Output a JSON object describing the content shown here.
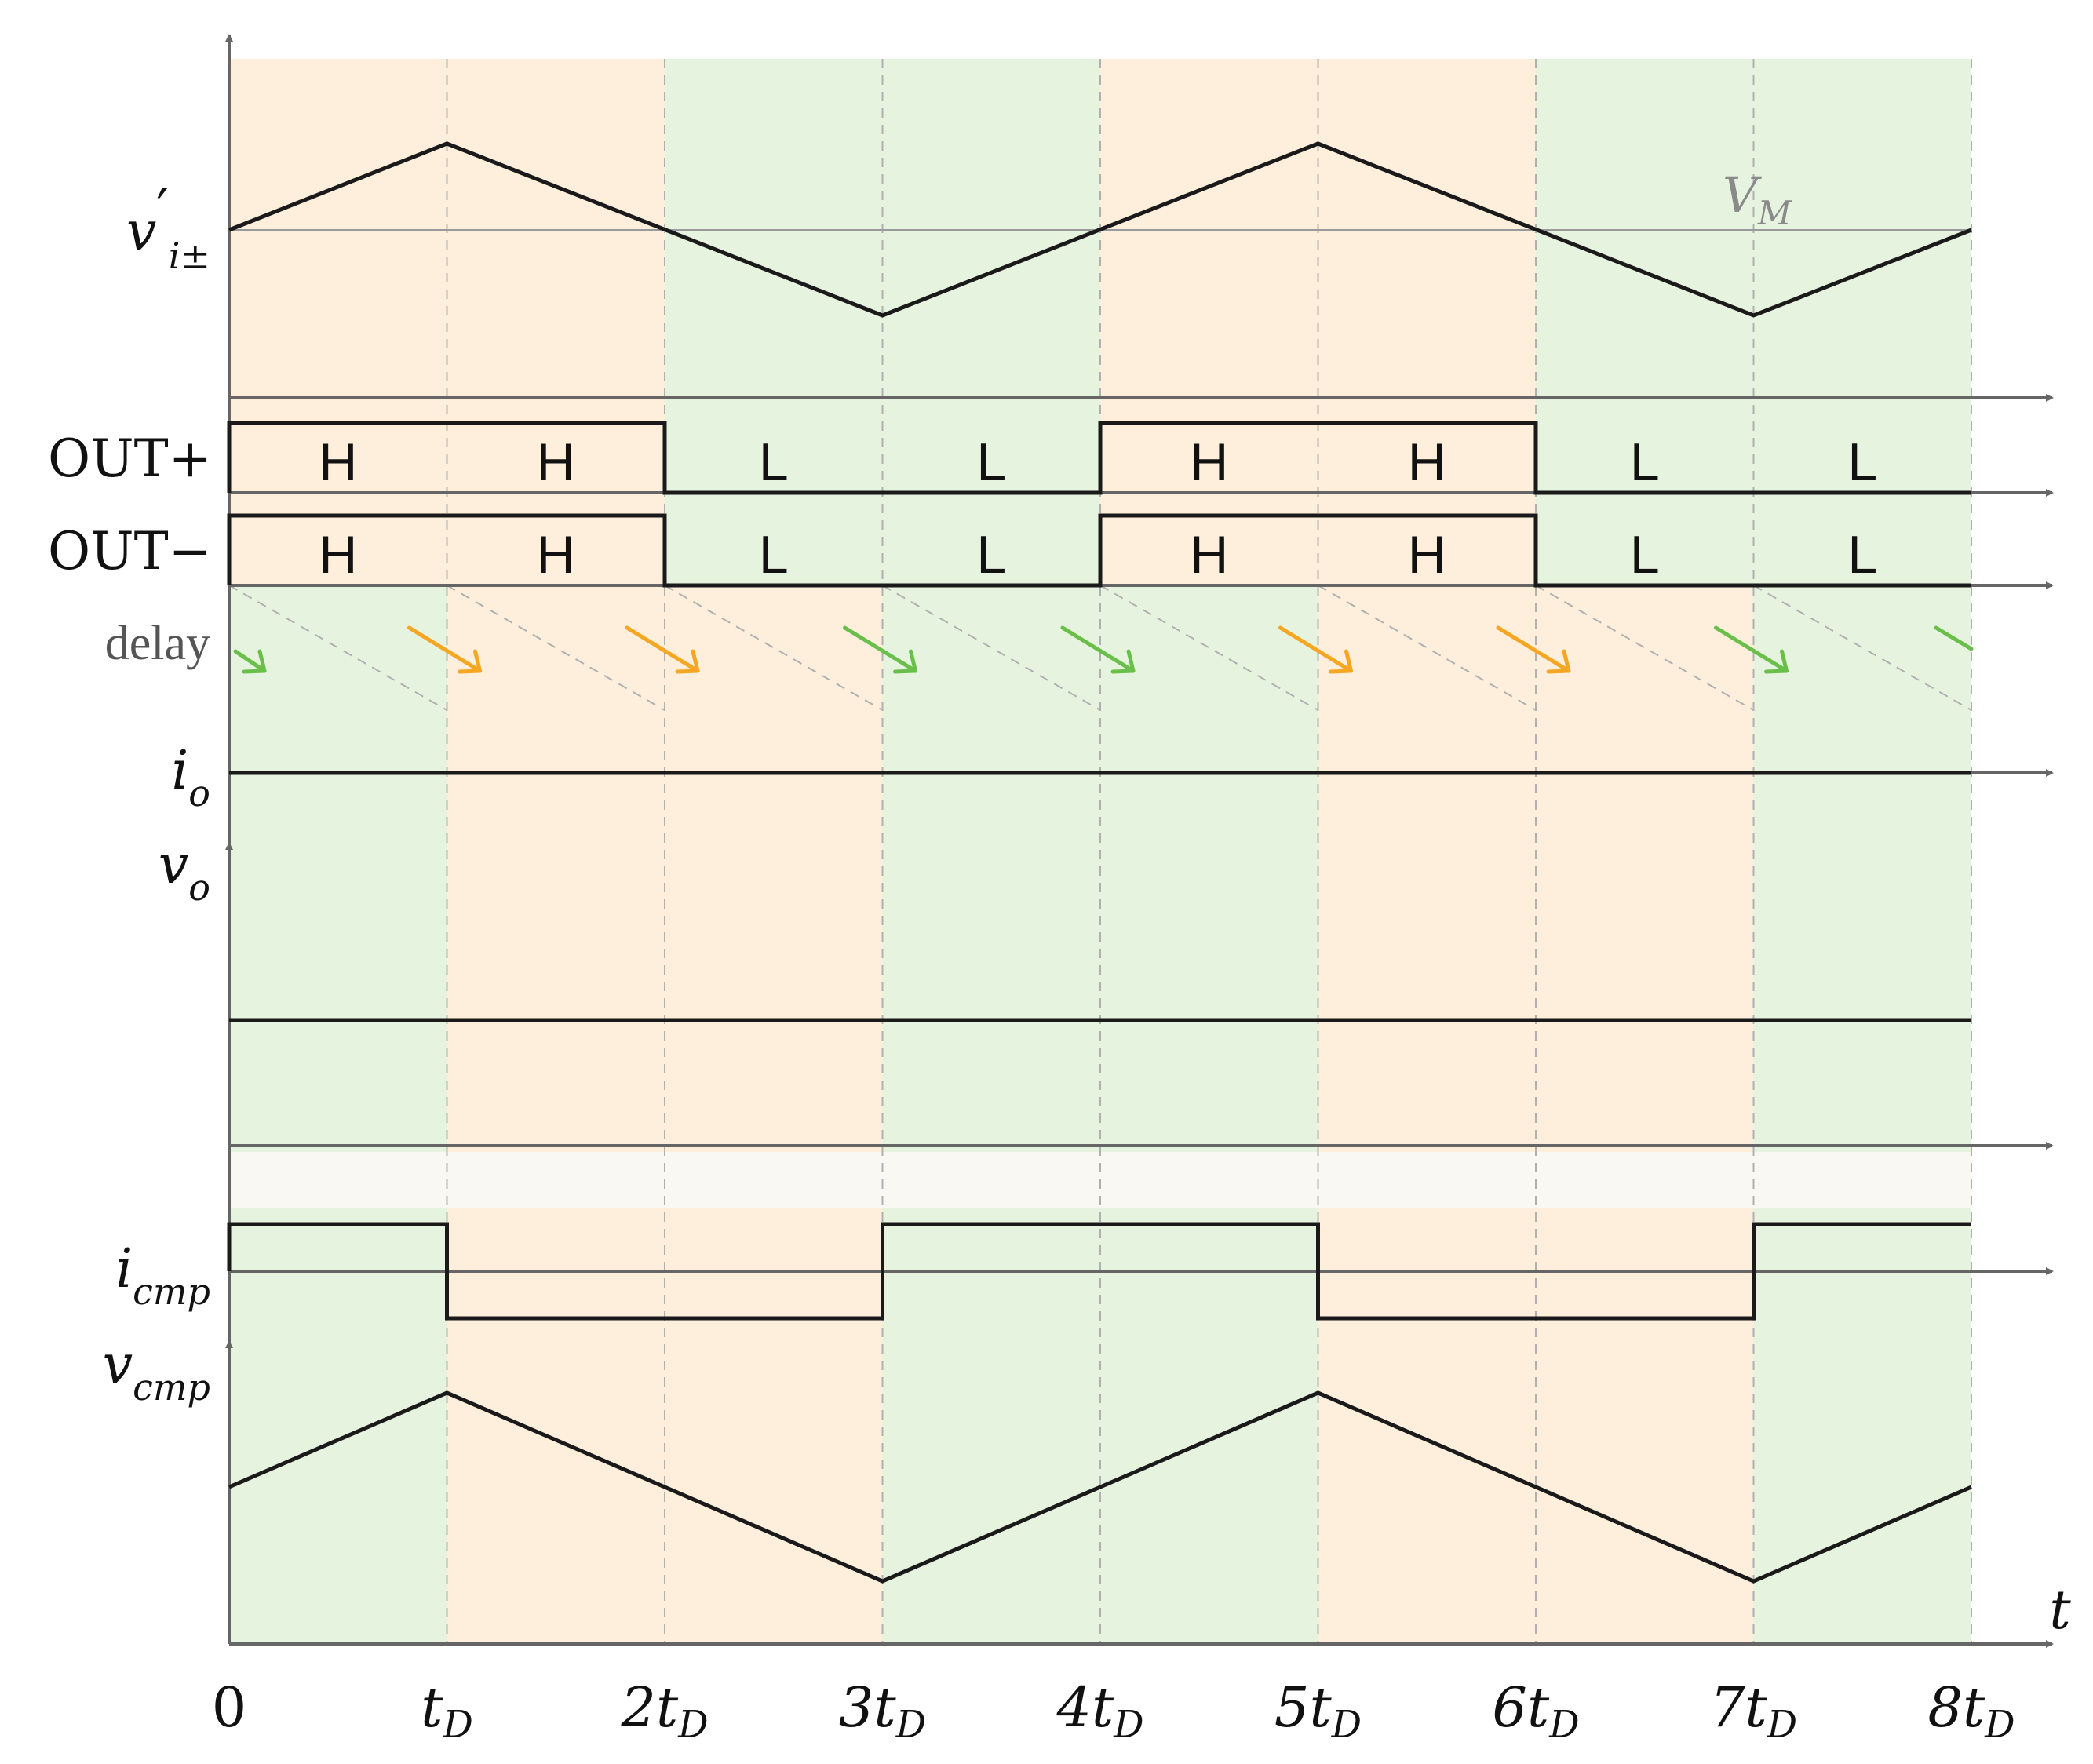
{
  "colors": {
    "orange_region": "#fdefdc",
    "green_region": "#e6f3df",
    "gap_band": "#faf8f3",
    "axis": "#666666",
    "trace": "#1a1a1a",
    "grid": "#b0b0b0",
    "arrow_orange": "#f5a623",
    "arrow_green": "#6abf4b"
  },
  "regions": [
    "orange",
    "orange",
    "green",
    "green",
    "orange",
    "orange",
    "green",
    "green"
  ],
  "signals": {
    "vi": {
      "name": "v",
      "prime": "′",
      "sub": "i±",
      "level_label_main": "V",
      "level_label_sub": "M"
    },
    "out_plus": {
      "label": "OUT+",
      "states": [
        "H",
        "H",
        "L",
        "L",
        "H",
        "H",
        "L",
        "L"
      ]
    },
    "out_minus": {
      "label": "OUT−",
      "states": [
        "H",
        "H",
        "L",
        "L",
        "H",
        "H",
        "L",
        "L"
      ]
    },
    "delay": {
      "label": "delay",
      "arrow_colors": [
        "green",
        "orange",
        "orange",
        "green",
        "green",
        "orange",
        "orange",
        "green",
        "green"
      ]
    },
    "io": {
      "name": "i",
      "sub": "o"
    },
    "vo": {
      "name": "v",
      "sub": "o"
    },
    "icmp": {
      "name": "i",
      "sub": "cmp"
    },
    "vcmp": {
      "name": "v",
      "sub": "cmp"
    }
  },
  "time_axis": {
    "label": "t",
    "ticks": [
      {
        "coef": "0",
        "sub": ""
      },
      {
        "coef": "t",
        "sub": "D"
      },
      {
        "coef": "2t",
        "sub": "D"
      },
      {
        "coef": "3t",
        "sub": "D"
      },
      {
        "coef": "4t",
        "sub": "D"
      },
      {
        "coef": "5t",
        "sub": "D"
      },
      {
        "coef": "6t",
        "sub": "D"
      },
      {
        "coef": "7t",
        "sub": "D"
      },
      {
        "coef": "8t",
        "sub": "D"
      }
    ]
  }
}
